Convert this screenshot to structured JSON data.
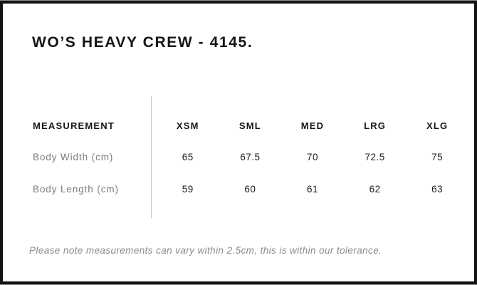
{
  "page": {
    "title": "WO’S HEAVY CREW - 4145.",
    "note": "Please note measurements can vary within 2.5cm, this is within our tolerance."
  },
  "size_chart": {
    "type": "table",
    "header": {
      "measurement_label": "MEASUREMENT",
      "sizes": [
        "XSM",
        "SML",
        "MED",
        "LRG",
        "XLG"
      ]
    },
    "rows": [
      {
        "label": "Body Width (cm)",
        "values": [
          "65",
          "67.5",
          "70",
          "72.5",
          "75"
        ]
      },
      {
        "label": "Body Length (cm)",
        "values": [
          "59",
          "60",
          "61",
          "62",
          "63"
        ]
      }
    ]
  },
  "colors": {
    "frame": "#131313",
    "text": "#1c1c1c",
    "muted_label": "#7c7c7c",
    "note_text": "#8a8a8a",
    "divider": "#c6c6c6"
  }
}
